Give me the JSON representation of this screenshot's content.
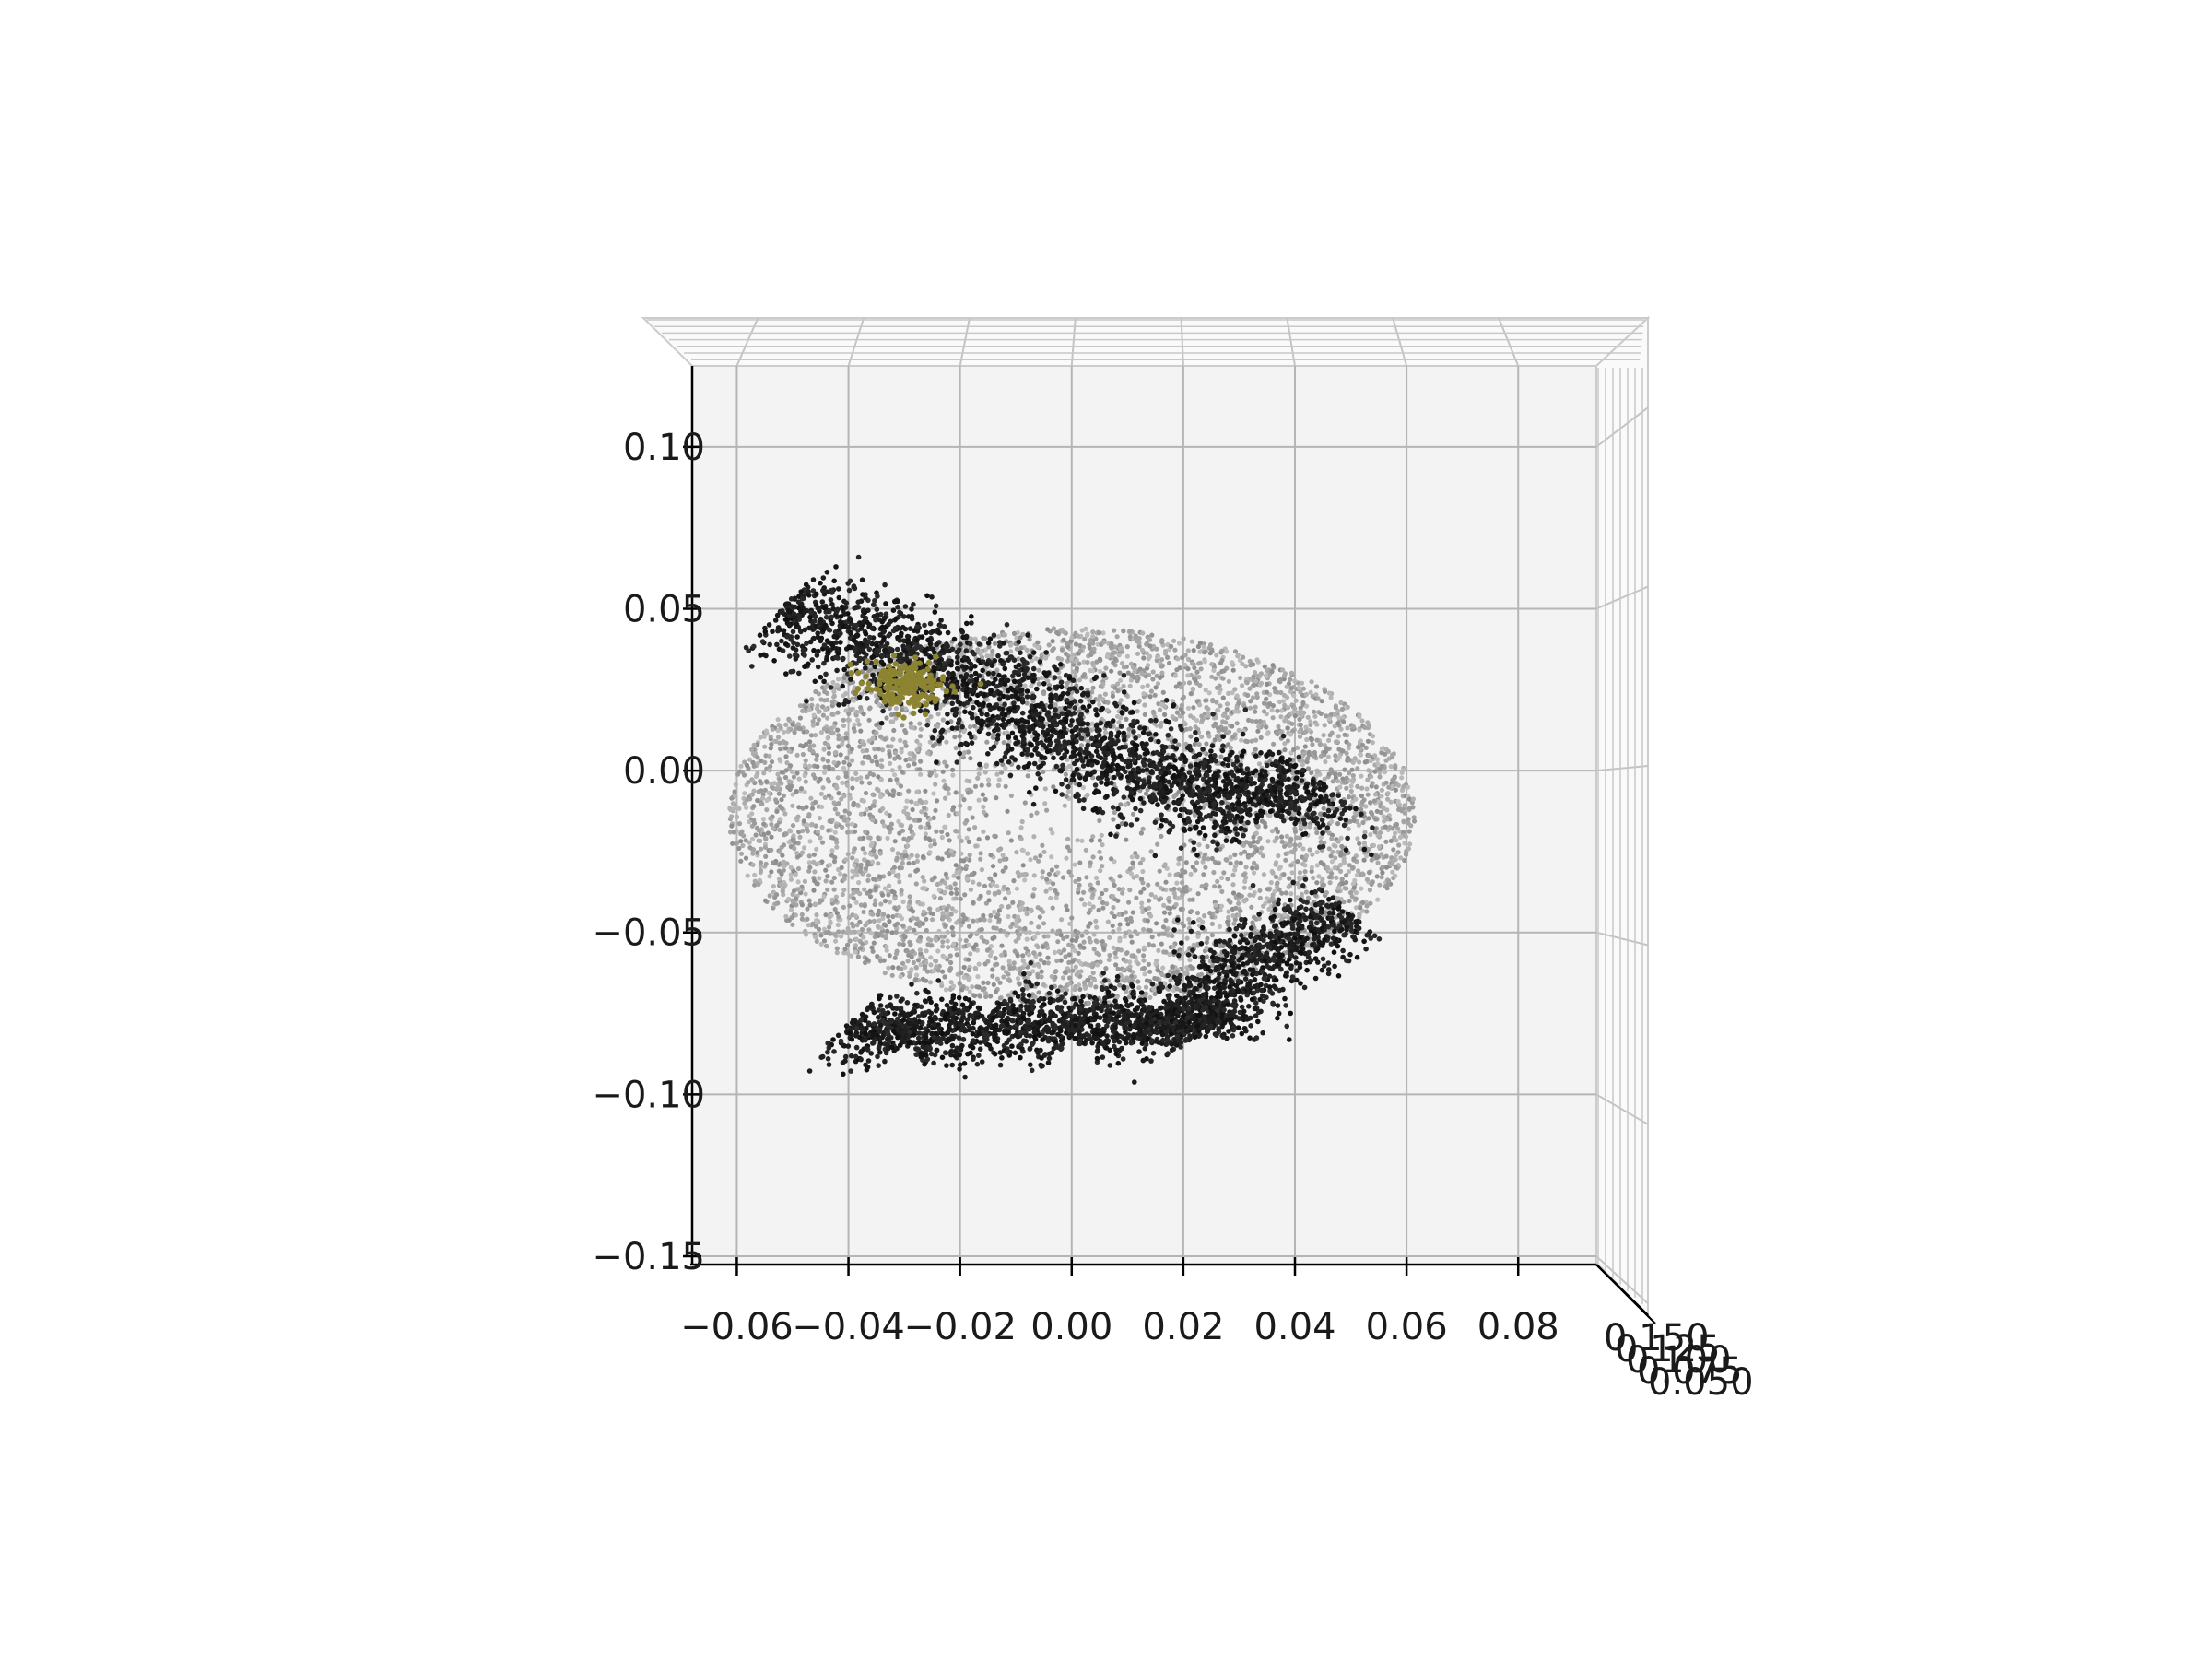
{
  "chart_data": {
    "type": "scatter",
    "projection": "3d",
    "title": "",
    "xlabel": "",
    "ylabel": "",
    "zlabel": "",
    "xlim": [
      -0.068,
      0.094
    ],
    "ylim": [
      -0.152,
      0.125
    ],
    "x_ticks": [
      "−0.06",
      "−0.04",
      "−0.02",
      "0.00",
      "0.02",
      "0.04",
      "0.06",
      "0.08"
    ],
    "y_ticks": [
      "−0.15",
      "−0.10",
      "−0.05",
      "0.00",
      "0.05",
      "0.10"
    ],
    "z_ticks_visible": [
      "0.150",
      "0.125",
      "0.100",
      "0.075",
      "0.050"
    ],
    "grid": true,
    "pane_color": "#f2f2f2",
    "series": [
      {
        "kind": "background sphere shell",
        "color": "#a8a8a8",
        "shape": "disk",
        "center": [
          0.0,
          -0.014
        ],
        "radius": 0.058
      },
      {
        "kind": "upper object",
        "color": "#161616",
        "polyline": [
          [
            -0.052,
            0.05
          ],
          [
            -0.04,
            0.043
          ],
          [
            -0.025,
            0.032
          ],
          [
            -0.01,
            0.02
          ],
          [
            0.005,
            0.006
          ],
          [
            0.02,
            -0.005
          ],
          [
            0.035,
            -0.012
          ],
          [
            0.045,
            -0.004
          ]
        ],
        "thickness": 0.016
      },
      {
        "kind": "lower object",
        "color": "#161616",
        "polyline": [
          [
            -0.04,
            -0.078
          ],
          [
            -0.03,
            -0.084
          ],
          [
            -0.015,
            -0.076
          ],
          [
            0.0,
            -0.082
          ],
          [
            0.015,
            -0.074
          ],
          [
            0.023,
            -0.082
          ],
          [
            0.026,
            -0.064
          ],
          [
            0.038,
            -0.052
          ],
          [
            0.05,
            -0.044
          ]
        ],
        "thickness": 0.012
      },
      {
        "kind": "highlighted region",
        "color": "#8c8430",
        "center": [
          -0.029,
          0.027
        ],
        "radius": 0.007
      }
    ]
  }
}
